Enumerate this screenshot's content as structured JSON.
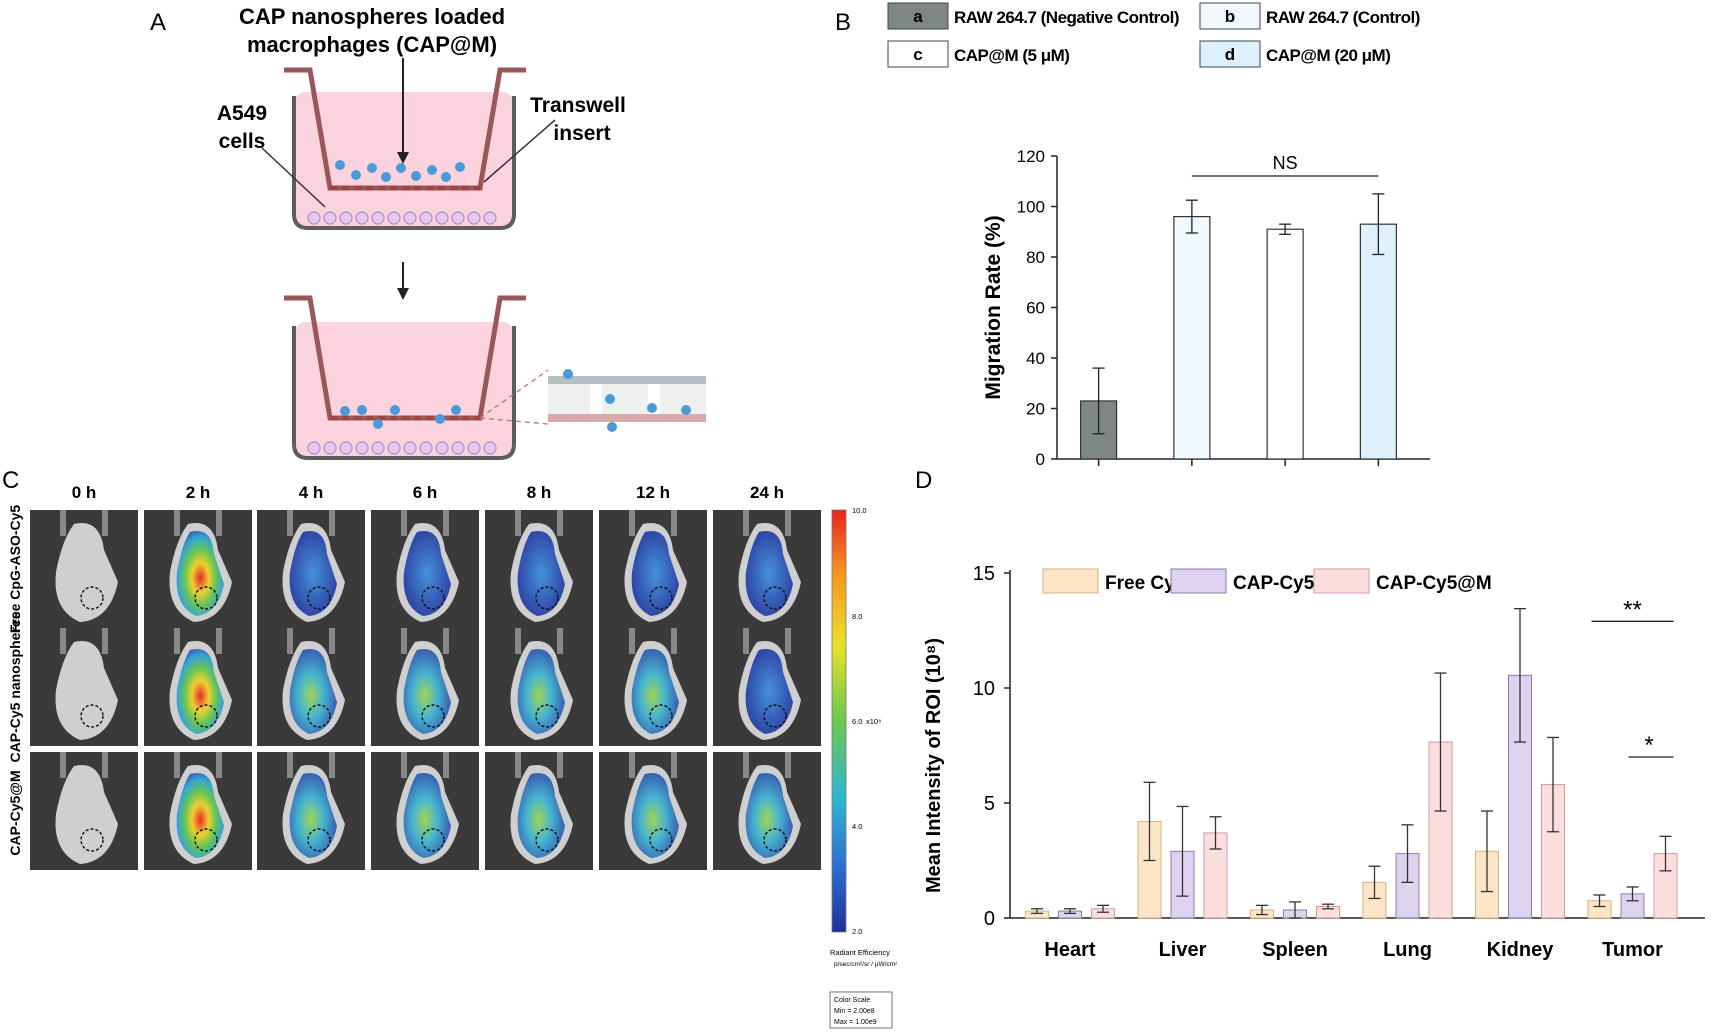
{
  "panels": {
    "A": {
      "letter": "A",
      "title_line1": "CAP nanospheres loaded",
      "title_line2": "macrophages (CAP@M)",
      "left_label_line1": "A549",
      "left_label_line2": "cells",
      "right_label_line1": "Transwell",
      "right_label_line2": "insert"
    },
    "B": {
      "letter": "B"
    },
    "C": {
      "letter": "C",
      "timepoints": [
        "0 h",
        "2 h",
        "4 h",
        "6 h",
        "8 h",
        "12 h",
        "24 h"
      ],
      "rows": [
        "Free CpG-ASO-Cy5",
        "CAP-Cy5 nanospheres",
        "CAP-Cy5@M"
      ],
      "colorbar": {
        "ticks": [
          "10.0",
          "8.0",
          "6.0",
          "4.0",
          "2.0"
        ],
        "unit": "x10⁸",
        "title": "Radiant Efficiency",
        "units_line": "p/sec/cm²/sr / µW/cm²",
        "box_line1": "Color Scale",
        "box_line2": "Min = 2.00e8",
        "box_line3": "Max = 1.00e9"
      }
    },
    "D": {
      "letter": "D"
    }
  },
  "colors": {
    "negative_control": "#7d8784",
    "control": "#eef8fd",
    "cap_m_5": "#ffffff",
    "cap_m_20": "#ddf0fb",
    "free_cy5": "#fde6c8",
    "cap_cy5": "#ddd3ee",
    "cap_cy5_m": "#fcdede"
  },
  "chart_data": [
    {
      "type": "bar",
      "panel": "B",
      "legend": [
        {
          "key": "a",
          "label": "RAW 264.7 (Negative Control)"
        },
        {
          "key": "b",
          "label": "RAW 264.7 (Control)"
        },
        {
          "key": "c",
          "label": "CAP@M (5 μM)"
        },
        {
          "key": "d",
          "label": "CAP@M (20 μM)"
        }
      ],
      "categories": [
        "a",
        "b",
        "c",
        "d"
      ],
      "values": [
        23,
        96,
        91,
        93
      ],
      "errors": [
        13,
        6.5,
        2,
        12
      ],
      "ylabel": "Migration Rate (%)",
      "ylim": [
        0,
        120
      ],
      "yticks": [
        "0",
        "20",
        "40",
        "60",
        "80",
        "100",
        "120"
      ],
      "annotation": "NS"
    },
    {
      "type": "bar",
      "panel": "D",
      "categories": [
        "Heart",
        "Liver",
        "Spleen",
        "Lung",
        "Kidney",
        "Tumor"
      ],
      "series": [
        {
          "name": "Free Cy5",
          "values": [
            0.3,
            4.2,
            0.35,
            1.55,
            2.9,
            0.75
          ],
          "errors": [
            0.1,
            1.7,
            0.2,
            0.7,
            1.75,
            0.25
          ]
        },
        {
          "name": "CAP-Cy5",
          "values": [
            0.3,
            2.9,
            0.35,
            2.8,
            10.55,
            1.05
          ],
          "errors": [
            0.1,
            1.95,
            0.35,
            1.25,
            2.9,
            0.3
          ]
        },
        {
          "name": "CAP-Cy5@M",
          "values": [
            0.4,
            3.7,
            0.5,
            7.65,
            5.8,
            2.8
          ],
          "errors": [
            0.15,
            0.7,
            0.1,
            3.0,
            2.05,
            0.75
          ]
        }
      ],
      "ylabel": "Mean Intensity of ROI (10⁸)",
      "ylim": [
        0,
        15
      ],
      "yticks": [
        "0",
        "5",
        "10",
        "15"
      ],
      "significance": [
        "**",
        "*"
      ]
    }
  ]
}
